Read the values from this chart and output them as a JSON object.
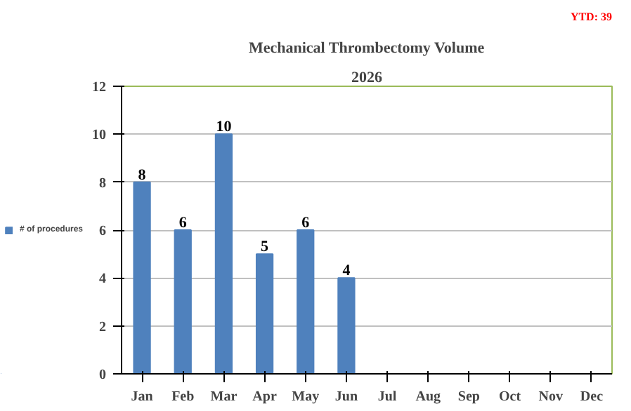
{
  "chart_data": {
    "type": "bar",
    "title": "Mechanical Thrombectomy Volume",
    "subtitle": "2026",
    "annotations": [
      "YTD: 39"
    ],
    "categories": [
      "Jan",
      "Feb",
      "Mar",
      "Apr",
      "May",
      "Jun",
      "Jul",
      "Aug",
      "Sep",
      "Oct",
      "Nov",
      "Dec"
    ],
    "series": [
      {
        "name": "# of procedures",
        "color": "#4f81bd",
        "values": [
          8,
          6,
          10,
          5,
          6,
          4,
          null,
          null,
          null,
          null,
          null,
          null
        ]
      }
    ],
    "ylim": [
      0,
      12
    ],
    "yticks": [
      0,
      2,
      4,
      6,
      8,
      10,
      12
    ],
    "grid": "y",
    "legend": "left",
    "data_labels": true
  }
}
